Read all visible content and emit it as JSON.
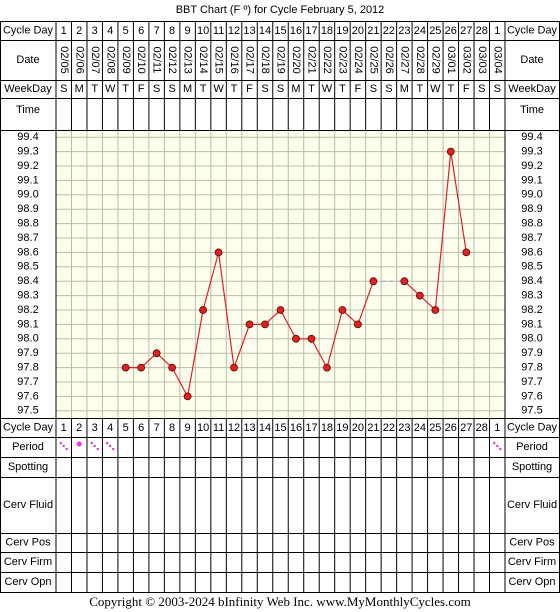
{
  "chart_data": {
    "type": "line",
    "title": "BBT Chart (F º) for Cycle February 5, 2012",
    "row_labels": {
      "cycle_day": "Cycle Day",
      "date": "Date",
      "weekday": "WeekDay",
      "time": "Time",
      "period": "Period",
      "spotting": "Spotting",
      "cerv_fluid": "Cerv Fluid",
      "cerv_pos": "Cerv Pos",
      "cerv_firm": "Cerv Firm",
      "cerv_opn": "Cerv Opn"
    },
    "categories": [
      1,
      2,
      3,
      4,
      5,
      6,
      7,
      8,
      9,
      10,
      11,
      12,
      13,
      14,
      15,
      16,
      17,
      18,
      19,
      20,
      21,
      22,
      23,
      24,
      25,
      26,
      27,
      28,
      1
    ],
    "dates": [
      "02/05",
      "02/06",
      "02/07",
      "02/08",
      "02/09",
      "02/10",
      "02/11",
      "02/12",
      "02/13",
      "02/14",
      "02/15",
      "02/16",
      "02/17",
      "02/18",
      "02/19",
      "02/20",
      "02/21",
      "02/22",
      "02/23",
      "02/24",
      "02/25",
      "02/26",
      "02/27",
      "02/28",
      "02/29",
      "03/01",
      "03/02",
      "03/03",
      "03/04"
    ],
    "weekdays": [
      "S",
      "M",
      "T",
      "W",
      "T",
      "F",
      "S",
      "S",
      "M",
      "T",
      "W",
      "T",
      "F",
      "S",
      "S",
      "M",
      "T",
      "W",
      "T",
      "F",
      "S",
      "S",
      "M",
      "T",
      "W",
      "T",
      "F",
      "S",
      "S"
    ],
    "series": [
      {
        "color": "#dd2222",
        "values": [
          null,
          null,
          null,
          null,
          97.8,
          97.8,
          97.9,
          97.8,
          97.6,
          98.2,
          98.6,
          97.8,
          98.1,
          98.1,
          98.2,
          98.0,
          98.0,
          97.8,
          98.2,
          98.1,
          98.4,
          null,
          98.4,
          98.3,
          98.2,
          99.3,
          98.6,
          null,
          null
        ]
      }
    ],
    "ylim": [
      97.45,
      99.45
    ],
    "yticks": [
      99.4,
      99.3,
      99.2,
      99.1,
      {
        "value": 99.0,
        "label": "99.0"
      },
      98.9,
      98.8,
      98.7,
      98.6,
      98.5,
      98.4,
      98.3,
      98.2,
      98.1,
      {
        "value": 98.0,
        "label": "98.0"
      },
      97.9,
      97.8,
      97.7,
      97.6,
      97.5
    ],
    "grid": true
  },
  "footer": "Copyright © 2003-2024 bInfinity Web Inc.     www.MyMonthlyCycles.com"
}
